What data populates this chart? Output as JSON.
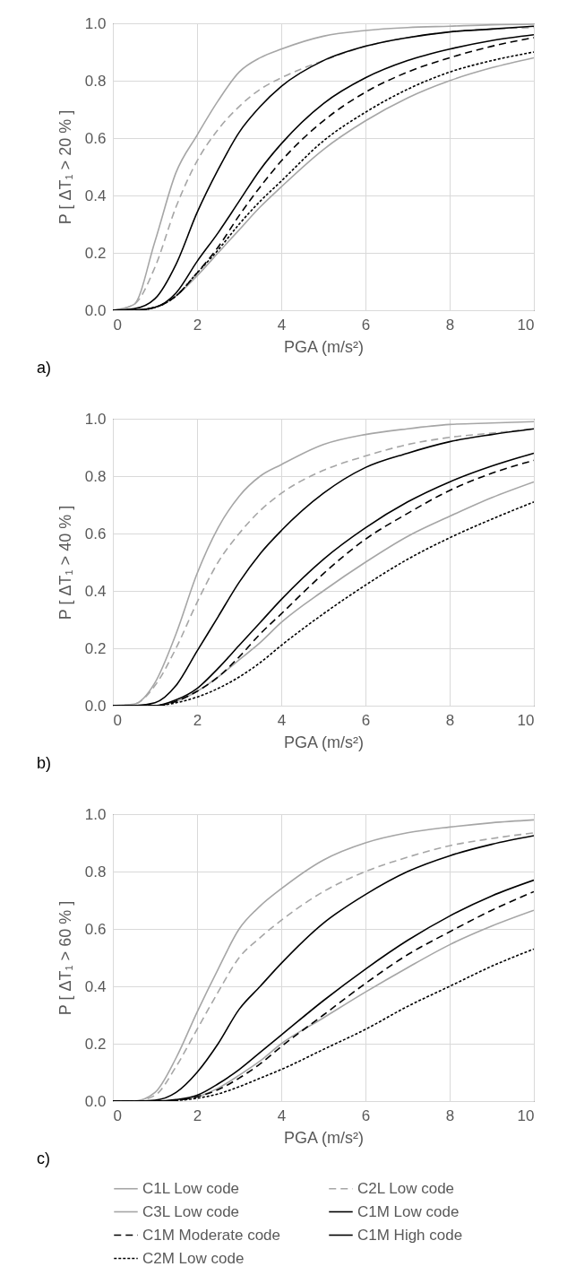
{
  "chart_data": [
    {
      "type": "line",
      "xlabel": "PGA (m/s²)",
      "ylabel": "P [ ΔT₁ > 20 % ]",
      "annotations": [
        "a)"
      ],
      "legend": "bottom",
      "x": [
        0,
        0.5,
        1,
        1.5,
        2,
        2.5,
        3,
        3.5,
        4,
        5,
        6,
        7,
        8,
        9,
        10
      ],
      "xlim": [
        0,
        10
      ],
      "xticks": [
        0,
        2,
        4,
        6,
        8,
        10
      ],
      "ylim": [
        0,
        1
      ],
      "yticks": [
        {
          "value": 0,
          "label": "0.0"
        },
        {
          "value": 0.2,
          "label": "0.2"
        },
        {
          "value": 0.4,
          "label": "0.4"
        },
        {
          "value": 0.6,
          "label": "0.6"
        },
        {
          "value": 0.8,
          "label": "0.8"
        },
        {
          "value": 1,
          "label": "1.0"
        }
      ],
      "grid": true,
      "series": [
        {
          "name": "C1L Low code",
          "color": "#a6a6a6",
          "line_style": "solid",
          "values": [
            0,
            0.02,
            0.24,
            0.48,
            0.61,
            0.73,
            0.83,
            0.88,
            0.91,
            0.955,
            0.975,
            0.985,
            0.99,
            0.995,
            0.997
          ]
        },
        {
          "name": "C2L Low code",
          "color": "#a6a6a6",
          "line_style": "dashed",
          "values": [
            0,
            0.02,
            0.15,
            0.36,
            0.52,
            0.63,
            0.71,
            0.77,
            0.81,
            0.87,
            0.92,
            0.95,
            0.97,
            0.98,
            0.985
          ]
        },
        {
          "name": "C3L Low code",
          "color": "#a6a6a6",
          "line_style": "solid",
          "values": [
            0,
            0,
            0.01,
            0.05,
            0.12,
            0.2,
            0.28,
            0.36,
            0.43,
            0.56,
            0.66,
            0.74,
            0.8,
            0.845,
            0.88
          ]
        },
        {
          "name": "C1M Low code",
          "color": "#000000",
          "line_style": "solid",
          "values": [
            0,
            0,
            0.01,
            0.06,
            0.17,
            0.27,
            0.38,
            0.49,
            0.58,
            0.72,
            0.81,
            0.87,
            0.91,
            0.94,
            0.96
          ]
        },
        {
          "name": "C1M Moderate code",
          "color": "#000000",
          "line_style": "dashed",
          "values": [
            0,
            0,
            0.01,
            0.05,
            0.13,
            0.22,
            0.33,
            0.43,
            0.52,
            0.66,
            0.76,
            0.83,
            0.88,
            0.92,
            0.95
          ]
        },
        {
          "name": "C1M High code",
          "color": "#000000",
          "line_style": "solid",
          "values": [
            0,
            0.005,
            0.04,
            0.16,
            0.34,
            0.49,
            0.62,
            0.71,
            0.78,
            0.87,
            0.92,
            0.95,
            0.97,
            0.98,
            0.99
          ]
        },
        {
          "name": "C2M Low code",
          "color": "#000000",
          "line_style": "dotted",
          "values": [
            0,
            0,
            0.01,
            0.05,
            0.13,
            0.21,
            0.3,
            0.38,
            0.45,
            0.59,
            0.69,
            0.77,
            0.83,
            0.87,
            0.9
          ]
        }
      ]
    },
    {
      "type": "line",
      "xlabel": "PGA (m/s²)",
      "ylabel": "P [ ΔT₁ > 40 % ]",
      "annotations": [
        "b)"
      ],
      "legend": "bottom",
      "x": [
        0,
        0.5,
        1,
        1.5,
        2,
        2.5,
        3,
        3.5,
        4,
        5,
        6,
        7,
        8,
        9,
        10
      ],
      "xlim": [
        0,
        10
      ],
      "xticks": [
        0,
        2,
        4,
        6,
        8,
        10
      ],
      "ylim": [
        0,
        1
      ],
      "yticks": [
        {
          "value": 0,
          "label": "0.0"
        },
        {
          "value": 0.2,
          "label": "0.2"
        },
        {
          "value": 0.4,
          "label": "0.4"
        },
        {
          "value": 0.6,
          "label": "0.6"
        },
        {
          "value": 0.8,
          "label": "0.8"
        },
        {
          "value": 1,
          "label": "1.0"
        }
      ],
      "grid": true,
      "series": [
        {
          "name": "C1L Low code",
          "color": "#a6a6a6",
          "line_style": "solid",
          "values": [
            0,
            0.005,
            0.08,
            0.25,
            0.46,
            0.62,
            0.73,
            0.8,
            0.84,
            0.91,
            0.945,
            0.965,
            0.98,
            0.985,
            0.99
          ]
        },
        {
          "name": "C2L Low code",
          "color": "#a6a6a6",
          "line_style": "dashed",
          "values": [
            0,
            0.005,
            0.07,
            0.2,
            0.36,
            0.5,
            0.6,
            0.68,
            0.74,
            0.82,
            0.87,
            0.91,
            0.935,
            0.95,
            0.965
          ]
        },
        {
          "name": "C3L Low code",
          "color": "#a6a6a6",
          "line_style": "solid",
          "values": [
            0,
            0,
            0,
            0.015,
            0.05,
            0.1,
            0.16,
            0.22,
            0.29,
            0.4,
            0.5,
            0.59,
            0.66,
            0.725,
            0.78
          ]
        },
        {
          "name": "C1M Low code",
          "color": "#000000",
          "line_style": "solid",
          "values": [
            0,
            0,
            0,
            0.02,
            0.06,
            0.13,
            0.21,
            0.29,
            0.37,
            0.51,
            0.62,
            0.71,
            0.78,
            0.835,
            0.88
          ]
        },
        {
          "name": "C1M Moderate code",
          "color": "#000000",
          "line_style": "dashed",
          "values": [
            0,
            0,
            0,
            0.015,
            0.05,
            0.1,
            0.17,
            0.25,
            0.32,
            0.46,
            0.58,
            0.67,
            0.75,
            0.81,
            0.855
          ]
        },
        {
          "name": "C1M High code",
          "color": "#000000",
          "line_style": "solid",
          "values": [
            0,
            0,
            0.01,
            0.07,
            0.19,
            0.31,
            0.43,
            0.53,
            0.61,
            0.74,
            0.83,
            0.88,
            0.92,
            0.945,
            0.965
          ]
        },
        {
          "name": "C2M Low code",
          "color": "#000000",
          "line_style": "dotted",
          "values": [
            0,
            0,
            0,
            0.01,
            0.03,
            0.06,
            0.1,
            0.15,
            0.21,
            0.32,
            0.42,
            0.51,
            0.585,
            0.65,
            0.71
          ]
        }
      ]
    },
    {
      "type": "line",
      "xlabel": "PGA (m/s²)",
      "ylabel": "P [ ΔT₁ > 60 % ]",
      "annotations": [
        "c)"
      ],
      "legend": "bottom",
      "x": [
        0,
        0.5,
        1,
        1.5,
        2,
        2.5,
        3,
        3.5,
        4,
        5,
        6,
        7,
        8,
        9,
        10
      ],
      "xlim": [
        0,
        10
      ],
      "xticks": [
        0,
        2,
        4,
        6,
        8,
        10
      ],
      "ylim": [
        0,
        1
      ],
      "yticks": [
        {
          "value": 0,
          "label": "0.0"
        },
        {
          "value": 0.2,
          "label": "0.2"
        },
        {
          "value": 0.4,
          "label": "0.4"
        },
        {
          "value": 0.6,
          "label": "0.6"
        },
        {
          "value": 0.8,
          "label": "0.8"
        },
        {
          "value": 1,
          "label": "1.0"
        }
      ],
      "grid": true,
      "series": [
        {
          "name": "C1L Low code",
          "color": "#a6a6a6",
          "line_style": "solid",
          "values": [
            0,
            0,
            0.03,
            0.15,
            0.31,
            0.46,
            0.6,
            0.68,
            0.74,
            0.84,
            0.9,
            0.935,
            0.955,
            0.97,
            0.98
          ]
        },
        {
          "name": "C2L Low code",
          "color": "#a6a6a6",
          "line_style": "dashed",
          "values": [
            0,
            0,
            0.02,
            0.12,
            0.25,
            0.38,
            0.5,
            0.57,
            0.63,
            0.73,
            0.8,
            0.85,
            0.89,
            0.915,
            0.935
          ]
        },
        {
          "name": "C3L Low code",
          "color": "#a6a6a6",
          "line_style": "solid",
          "values": [
            0,
            0,
            0,
            0.003,
            0.015,
            0.045,
            0.09,
            0.14,
            0.2,
            0.29,
            0.38,
            0.465,
            0.545,
            0.61,
            0.665
          ]
        },
        {
          "name": "C1M Low code",
          "color": "#000000",
          "line_style": "solid",
          "values": [
            0,
            0,
            0,
            0.005,
            0.02,
            0.06,
            0.11,
            0.17,
            0.23,
            0.35,
            0.46,
            0.56,
            0.645,
            0.715,
            0.77
          ]
        },
        {
          "name": "C1M Moderate code",
          "color": "#000000",
          "line_style": "dashed",
          "values": [
            0,
            0,
            0,
            0.003,
            0.015,
            0.04,
            0.08,
            0.13,
            0.19,
            0.3,
            0.41,
            0.51,
            0.59,
            0.665,
            0.73
          ]
        },
        {
          "name": "C1M High code",
          "color": "#000000",
          "line_style": "solid",
          "values": [
            0,
            0,
            0.003,
            0.03,
            0.1,
            0.2,
            0.32,
            0.4,
            0.48,
            0.62,
            0.72,
            0.8,
            0.855,
            0.895,
            0.925
          ]
        },
        {
          "name": "C2M Low code",
          "color": "#000000",
          "line_style": "dotted",
          "values": [
            0,
            0,
            0,
            0.002,
            0.01,
            0.025,
            0.05,
            0.08,
            0.11,
            0.18,
            0.25,
            0.33,
            0.4,
            0.47,
            0.53
          ]
        }
      ]
    }
  ]
}
